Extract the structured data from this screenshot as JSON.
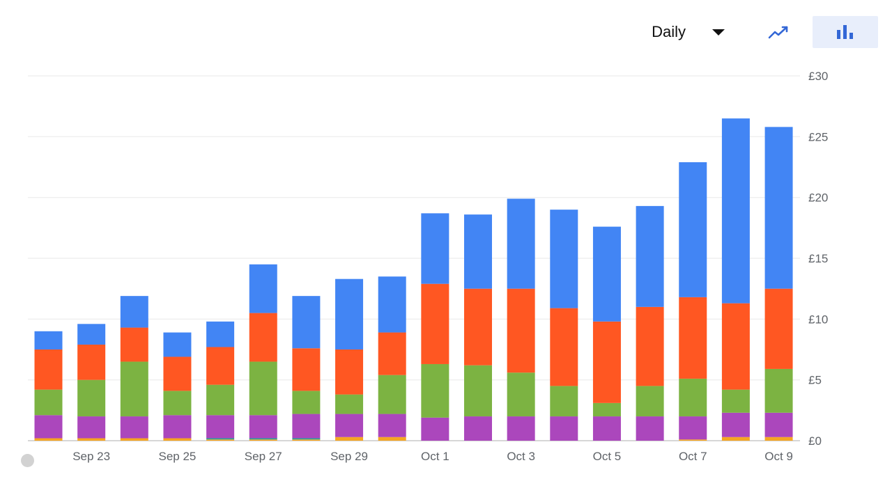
{
  "toolbar": {
    "period_label": "Daily",
    "line_view_icon": "trend-line-icon",
    "bar_view_icon": "bar-chart-icon",
    "active_view": "bar"
  },
  "colors": {
    "blue": "#4285f4",
    "orange": "#ff5722",
    "green": "#7cb342",
    "purple": "#ab47bc",
    "gold": "#f5a623",
    "teal": "#26a69a",
    "accent": "#3367d6"
  },
  "chart_data": {
    "type": "bar",
    "stacked": true,
    "currency": "£",
    "categories": [
      "Sep 22",
      "Sep 23",
      "Sep 24",
      "Sep 25",
      "Sep 26",
      "Sep 27",
      "Sep 28",
      "Sep 29",
      "Sep 30",
      "Oct 1",
      "Oct 2",
      "Oct 3",
      "Oct 4",
      "Oct 5",
      "Oct 6",
      "Oct 7",
      "Oct 8",
      "Oct 9"
    ],
    "x_tick_labels": [
      "",
      "Sep 23",
      "",
      "Sep 25",
      "",
      "Sep 27",
      "",
      "Sep 29",
      "",
      "Oct 1",
      "",
      "Oct 3",
      "",
      "Oct 5",
      "",
      "Oct 7",
      "",
      "Oct 9"
    ],
    "series": [
      {
        "color": "#f5a623",
        "values": [
          0.2,
          0.2,
          0.2,
          0.2,
          0.1,
          0.1,
          0.1,
          0.3,
          0.3,
          0.0,
          0.0,
          0.0,
          0.0,
          0.0,
          0.0,
          0.1,
          0.3,
          0.3
        ]
      },
      {
        "color": "#26a69a",
        "values": [
          0.0,
          0.0,
          0.0,
          0.0,
          0.1,
          0.1,
          0.1,
          0.0,
          0.0,
          0.0,
          0.0,
          0.0,
          0.0,
          0.0,
          0.0,
          0.0,
          0.0,
          0.0
        ]
      },
      {
        "color": "#ab47bc",
        "values": [
          1.9,
          1.8,
          1.8,
          1.9,
          1.9,
          1.9,
          2.0,
          1.9,
          1.9,
          1.9,
          2.0,
          2.0,
          2.0,
          2.0,
          2.0,
          1.9,
          2.0,
          2.0
        ]
      },
      {
        "color": "#7cb342",
        "values": [
          2.1,
          3.0,
          4.5,
          2.0,
          2.5,
          4.4,
          1.9,
          1.6,
          3.2,
          4.4,
          4.2,
          3.6,
          2.5,
          1.1,
          2.5,
          3.1,
          1.9,
          3.6
        ]
      },
      {
        "color": "#ff5722",
        "values": [
          3.3,
          2.9,
          2.8,
          2.8,
          3.1,
          4.0,
          3.5,
          3.7,
          3.5,
          6.6,
          6.3,
          6.9,
          6.4,
          6.7,
          6.5,
          6.7,
          7.1,
          6.6
        ]
      },
      {
        "color": "#4285f4",
        "values": [
          1.5,
          1.7,
          2.6,
          2.0,
          2.1,
          4.0,
          4.3,
          5.8,
          4.6,
          5.8,
          6.1,
          7.4,
          8.1,
          7.8,
          8.3,
          11.1,
          15.2,
          13.3
        ]
      }
    ],
    "ylim": [
      0,
      30
    ],
    "y_ticks": [
      0,
      5,
      10,
      15,
      20,
      25,
      30
    ],
    "y_tick_labels": [
      "£0",
      "£5",
      "£10",
      "£15",
      "£20",
      "£25",
      "£30"
    ],
    "ytick_position": "right",
    "grid": true,
    "legend": "none"
  }
}
